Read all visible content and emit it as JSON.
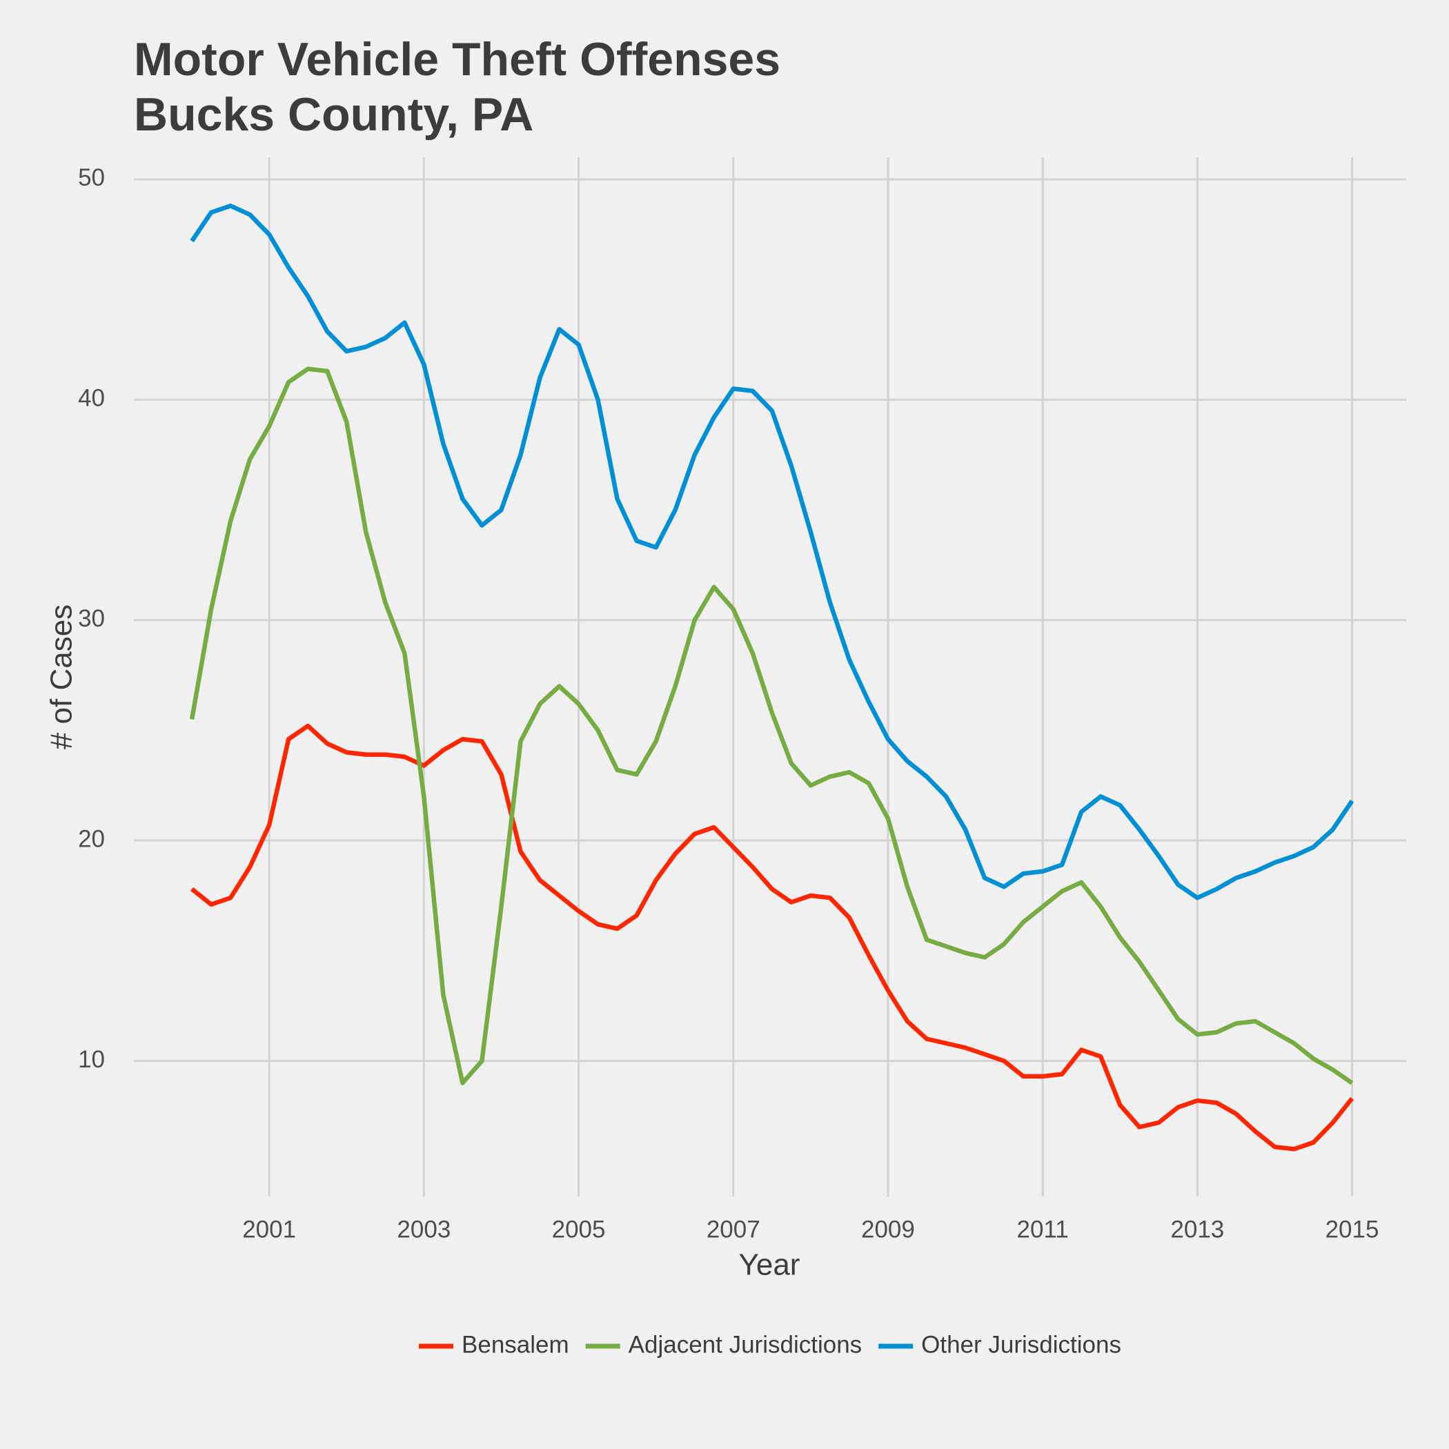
{
  "chart_data": {
    "type": "line",
    "title": "Motor Vehicle Theft Offenses\nBucks County, PA",
    "x_label": "Year",
    "y_label": "# of Cases",
    "x": [
      2000,
      2000.25,
      2000.5,
      2000.75,
      2001,
      2001.25,
      2001.5,
      2001.75,
      2002,
      2002.25,
      2002.5,
      2002.75,
      2003,
      2003.25,
      2003.5,
      2003.75,
      2004,
      2004.25,
      2004.5,
      2004.75,
      2005,
      2005.25,
      2005.5,
      2005.75,
      2006,
      2006.25,
      2006.5,
      2006.75,
      2007,
      2007.25,
      2007.5,
      2007.75,
      2008,
      2008.25,
      2008.5,
      2008.75,
      2009,
      2009.25,
      2009.5,
      2009.75,
      2010,
      2010.25,
      2010.5,
      2010.75,
      2011,
      2011.25,
      2011.5,
      2011.75,
      2012,
      2012.25,
      2012.5,
      2012.75,
      2013,
      2013.25,
      2013.5,
      2013.75,
      2014,
      2014.25,
      2014.5,
      2014.75,
      2015
    ],
    "series": [
      {
        "name": "Bensalem",
        "color": "#ff2700",
        "values": [
          17.8,
          17.1,
          17.4,
          18.8,
          20.7,
          24.6,
          25.2,
          24.4,
          24.0,
          23.9,
          23.9,
          23.8,
          23.4,
          24.1,
          24.6,
          24.5,
          23.0,
          19.5,
          18.2,
          17.5,
          16.8,
          16.2,
          16.0,
          16.6,
          18.2,
          19.4,
          20.3,
          20.6,
          19.7,
          18.8,
          17.8,
          17.2,
          17.5,
          17.4,
          16.5,
          14.8,
          13.2,
          11.8,
          11.0,
          10.8,
          10.6,
          10.3,
          10.0,
          9.3,
          9.3,
          9.4,
          10.5,
          10.2,
          8.0,
          7.0,
          7.2,
          7.9,
          8.2,
          8.1,
          7.6,
          6.8,
          6.1,
          6.0,
          6.3,
          7.2,
          8.3
        ]
      },
      {
        "name": "Adjacent Jurisdictions",
        "color": "#77ab43",
        "values": [
          25.5,
          30.5,
          34.5,
          37.3,
          38.8,
          40.8,
          41.4,
          41.3,
          39.0,
          34.0,
          30.8,
          28.5,
          22.0,
          13.0,
          9.0,
          10.0,
          17.0,
          24.5,
          26.2,
          27.0,
          26.2,
          25.0,
          23.2,
          23.0,
          24.5,
          27.0,
          30.0,
          31.5,
          30.5,
          28.5,
          25.8,
          23.5,
          22.5,
          22.9,
          23.1,
          22.6,
          21.0,
          17.9,
          15.5,
          15.2,
          14.9,
          14.7,
          15.3,
          16.3,
          17.0,
          17.7,
          18.1,
          17.0,
          15.6,
          14.5,
          13.2,
          11.9,
          11.2,
          11.3,
          11.7,
          11.8,
          11.3,
          10.8,
          10.1,
          9.6,
          9.0
        ]
      },
      {
        "name": "Other Jurisdictions",
        "color": "#008fd5",
        "values": [
          47.2,
          48.5,
          48.8,
          48.4,
          47.5,
          46.0,
          44.7,
          43.1,
          42.2,
          42.4,
          42.8,
          43.5,
          41.6,
          38.0,
          35.5,
          34.3,
          35.0,
          37.5,
          41.0,
          43.2,
          42.5,
          40.0,
          35.5,
          33.6,
          33.3,
          35.0,
          37.5,
          39.2,
          40.5,
          40.4,
          39.5,
          37.0,
          34.0,
          30.8,
          28.2,
          26.3,
          24.6,
          23.6,
          22.9,
          22.0,
          20.5,
          18.3,
          17.9,
          18.5,
          18.6,
          18.9,
          21.3,
          22.0,
          21.6,
          20.5,
          19.3,
          18.0,
          17.4,
          17.8,
          18.3,
          18.6,
          19.0,
          19.3,
          19.7,
          20.5,
          21.8
        ]
      }
    ],
    "xlim": [
      1999.25,
      2015.7
    ],
    "xticks": [
      2001,
      2003,
      2005,
      2007,
      2009,
      2011,
      2013,
      2015
    ],
    "ylim": [
      3.85,
      51.0
    ],
    "yticks": [
      10,
      20,
      30,
      40,
      50
    ],
    "grid": true,
    "legend": "bottom"
  }
}
